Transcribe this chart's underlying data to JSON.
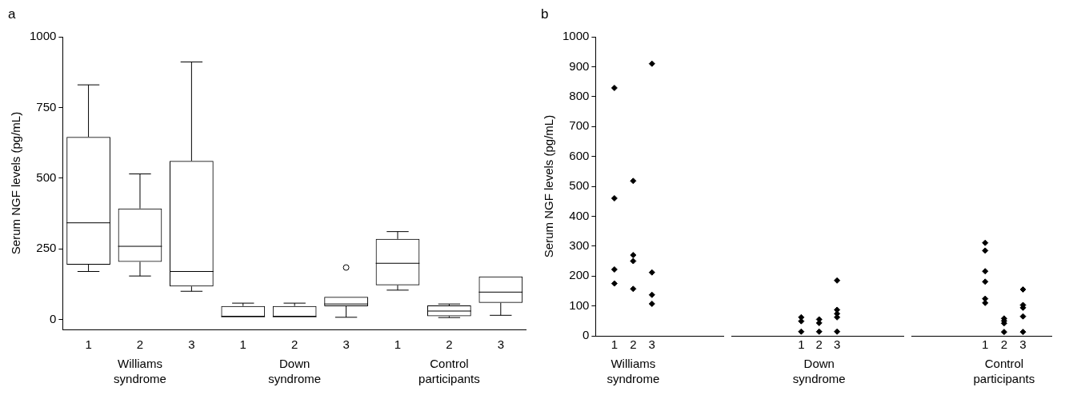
{
  "chart_data": [
    {
      "type": "box",
      "title": "a",
      "ylabel": "Serum NGF levels (pg/mL)",
      "categories": [
        "1",
        "2",
        "3",
        "1",
        "2",
        "3",
        "1",
        "2",
        "3"
      ],
      "boxes": [
        {
          "low": 170,
          "q1": 194,
          "median": 342,
          "q3": 646,
          "high": 830
        },
        {
          "low": 154,
          "q1": 204,
          "median": 259,
          "q3": 393,
          "high": 515
        },
        {
          "low": 100,
          "q1": 117,
          "median": 170,
          "q3": 561,
          "high": 911
        },
        {
          "low": 10,
          "q1": 10,
          "median": 10,
          "q3": 48,
          "high": 58
        },
        {
          "low": 10,
          "q1": 10,
          "median": 10,
          "q3": 48,
          "high": 58
        },
        {
          "low": 8,
          "q1": 47,
          "median": 55,
          "q3": 80,
          "high": 80,
          "outliers": [
            184
          ]
        },
        {
          "low": 104,
          "q1": 121,
          "median": 199,
          "q3": 285,
          "high": 311
        },
        {
          "low": 7,
          "q1": 12,
          "median": 30,
          "q3": 50,
          "high": 55
        },
        {
          "low": 15,
          "q1": 59,
          "median": 97,
          "q3": 152,
          "high": 152
        }
      ],
      "ylim": [
        -35,
        1000
      ],
      "yticks": [
        0,
        250,
        500,
        750,
        1000
      ],
      "grid": false,
      "annotations": [
        "Williams syndrome",
        "Down syndrome",
        "Control participants"
      ]
    },
    {
      "type": "scatter",
      "title": "b",
      "ylabel": "Serum NGF levels (pg/mL)",
      "marker": "diamond",
      "series": [
        {
          "color": "#000000",
          "x": [
            1,
            1,
            1,
            1,
            2,
            2,
            2,
            2,
            3,
            3,
            3,
            3
          ],
          "values": [
            829,
            460,
            222,
            175,
            518,
            270,
            250,
            157,
            910,
            212,
            137,
            107
          ]
        }
      ],
      "xlim": [
        0,
        6.8
      ],
      "xticks": [
        1,
        2,
        3
      ],
      "ylim": [
        0,
        1000
      ],
      "yticks": [
        0,
        100,
        200,
        300,
        400,
        500,
        600,
        700,
        800,
        900,
        1000
      ],
      "grid": false,
      "annotations": [
        "Williams syndrome"
      ]
    },
    {
      "type": "scatter",
      "marker": "diamond",
      "tick_labels": "x",
      "series": [
        {
          "color": "#000000",
          "x": [
            1,
            1,
            1,
            2,
            2,
            2,
            3,
            3,
            3,
            3,
            3
          ],
          "values": [
            62,
            49,
            14,
            55,
            43,
            14,
            185,
            87,
            74,
            62,
            14
          ]
        }
      ],
      "xlim": [
        -2.9,
        6.7
      ],
      "xticks": [
        1,
        2,
        3
      ],
      "ylim": [
        0,
        1000
      ],
      "yticks": [
        0,
        100,
        200,
        300,
        400,
        500,
        600,
        700,
        800,
        900,
        1000
      ],
      "grid": false,
      "annotations": [
        "Down syndrome"
      ]
    },
    {
      "type": "scatter",
      "marker": "diamond",
      "tick_labels": "x",
      "series": [
        {
          "color": "#000000",
          "x": [
            1,
            1,
            1,
            1,
            1,
            1,
            2,
            2,
            2,
            2,
            3,
            3,
            3,
            3,
            3
          ],
          "values": [
            311,
            285,
            216,
            181,
            124,
            110,
            58,
            50,
            42,
            13,
            155,
            103,
            94,
            65,
            13
          ]
        }
      ],
      "xlim": [
        -2.9,
        4.5
      ],
      "xticks": [
        1,
        2,
        3
      ],
      "ylim": [
        0,
        1000
      ],
      "yticks": [
        0,
        100,
        200,
        300,
        400,
        500,
        600,
        700,
        800,
        900,
        1000
      ],
      "grid": false,
      "annotations": [
        "Control participants"
      ]
    }
  ]
}
